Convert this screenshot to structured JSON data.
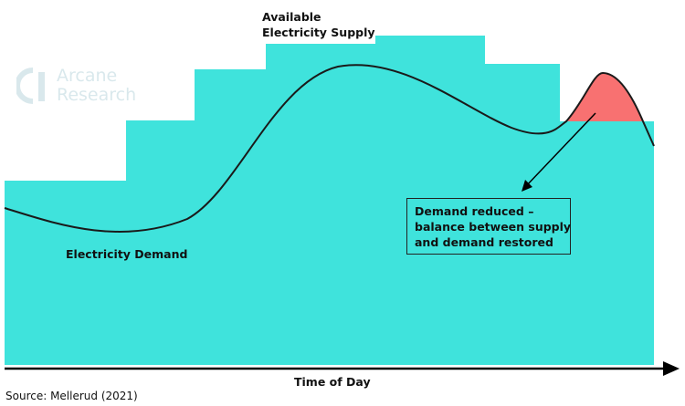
{
  "labels": {
    "supply_line1": "Available",
    "supply_line2": "Electricity Supply",
    "demand": "Electricity Demand",
    "annotation_line1": "Demand reduced –",
    "annotation_line2": "balance between supply",
    "annotation_line3": "and demand restored",
    "x_axis": "Time of Day",
    "source": "Source: Mellerud (2021)"
  },
  "logo": {
    "line1": "Arcane",
    "line2": "Research"
  },
  "colors": {
    "supply_fill": "#3fe3dc",
    "excess_demand_fill": "#f87171",
    "demand_line": "#1a1a1a",
    "axis": "#000000"
  }
}
